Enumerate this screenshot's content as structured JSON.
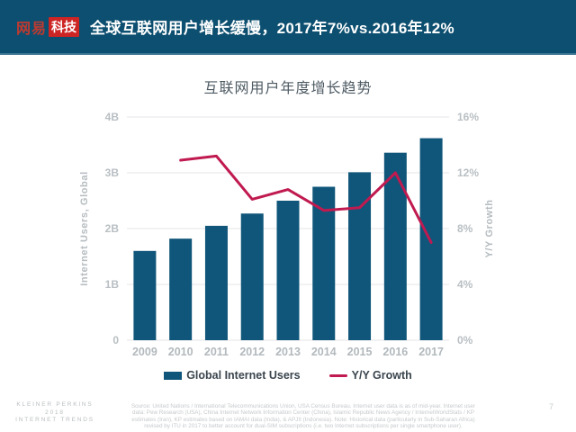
{
  "header": {
    "logo_prefix": "网易",
    "logo_suffix": "科技",
    "title": "全球互联网用户增长缓慢，2017年7%vs.2016年12%"
  },
  "chart_data": {
    "type": "bar",
    "title": "互联网用户年度增长趋势",
    "categories": [
      "2009",
      "2010",
      "2011",
      "2012",
      "2013",
      "2014",
      "2015",
      "2016",
      "2017"
    ],
    "series": [
      {
        "name": "Global Internet Users",
        "type": "bar",
        "axis": "left",
        "unit": "B",
        "color": "#10567a",
        "values": [
          1.6,
          1.82,
          2.05,
          2.27,
          2.5,
          2.75,
          3.01,
          3.36,
          3.62
        ]
      },
      {
        "name": "Y/Y Growth",
        "type": "line",
        "axis": "right",
        "unit": "%",
        "color": "#c01a50",
        "values": [
          null,
          12.9,
          13.2,
          10.1,
          10.8,
          9.3,
          9.5,
          12,
          7
        ]
      }
    ],
    "left_axis": {
      "label": "Internet Users, Global",
      "min": 0,
      "max": 4,
      "ticks": [
        {
          "label": "4B",
          "value": 4
        },
        {
          "label": "3B",
          "value": 3
        },
        {
          "label": "2B",
          "value": 2
        },
        {
          "label": "1B",
          "value": 1
        },
        {
          "label": "0",
          "value": 0
        }
      ]
    },
    "right_axis": {
      "label": "Y/Y Growth",
      "min": 0,
      "max": 16,
      "ticks": [
        {
          "label": "16%",
          "value": 16
        },
        {
          "label": "12%",
          "value": 12
        },
        {
          "label": "8%",
          "value": 8
        },
        {
          "label": "4%",
          "value": 4
        },
        {
          "label": "0%",
          "value": 0
        }
      ]
    },
    "grid": true,
    "legend_position": "bottom",
    "gridline_color": "#e4e6e8"
  },
  "footer": {
    "brand_lines": [
      "KLEINER PERKINS",
      "2018",
      "INTERNET TRENDS"
    ],
    "source_lines": [
      "Source: United Nations / International Telecommunications Union, USA Census Bureau. Internet user data is as of mid-year. Internet user",
      "data: Pew Research (USA), China Internet Network Information Center (China), Islamic Republic News Agency / InternetWorldStats / KP",
      "estimates (Iran), KP estimates based on IAMAI data (India), & APJII (Indonesia).  Note: Historical data (particularly in Sub-Saharan Africa)",
      "revised by ITU in 2017 to better account for dual-SIM subscriptions (i.e. two Internet subscriptions per single smartphone user)."
    ],
    "page_number": "7"
  },
  "colors": {
    "header_bg": "#0d4f70",
    "logo_red": "#cd2424",
    "bar_blue": "#10567a",
    "line_crimson": "#c01a50"
  }
}
